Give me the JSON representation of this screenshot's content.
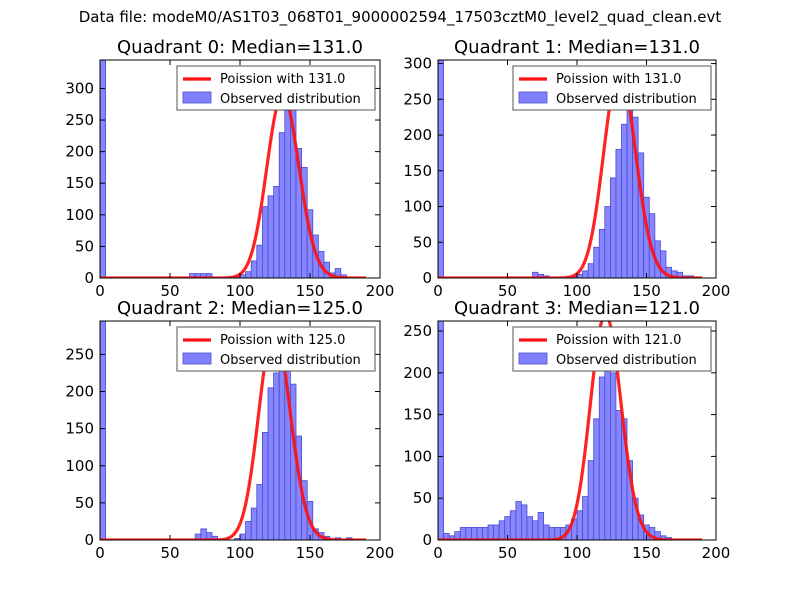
{
  "figure_title": "Data file: modeM0/AS1T03_068T01_9000002594_17503cztM0_level2_quad_clean.evt",
  "colors": {
    "bar_fill": "#8080ff",
    "bar_edge": "#4b4bd0",
    "poisson_line": "#ff1010",
    "axes": "#000000",
    "background": "#ffffff"
  },
  "chart_data": [
    {
      "type": "bar",
      "title": "Quadrant 0: Median=131.0",
      "median": 131.0,
      "legend": {
        "poisson": "Poission with 131.0",
        "observed": "Observed distribution",
        "placement": "top-right"
      },
      "xlim": [
        0,
        200
      ],
      "ylim": [
        0,
        345
      ],
      "xticks": [
        0,
        50,
        100,
        150,
        200
      ],
      "yticks": [
        0,
        50,
        100,
        150,
        200,
        250,
        300
      ],
      "bin_width": 4,
      "bins": [
        [
          0,
          345
        ],
        [
          64,
          7
        ],
        [
          68,
          7
        ],
        [
          72,
          7
        ],
        [
          76,
          7
        ],
        [
          92,
          2
        ],
        [
          96,
          3
        ],
        [
          100,
          5
        ],
        [
          104,
          10
        ],
        [
          108,
          27
        ],
        [
          112,
          52
        ],
        [
          116,
          113
        ],
        [
          120,
          130
        ],
        [
          124,
          145
        ],
        [
          128,
          230
        ],
        [
          132,
          265
        ],
        [
          136,
          300
        ],
        [
          140,
          205
        ],
        [
          144,
          175
        ],
        [
          148,
          108
        ],
        [
          152,
          68
        ],
        [
          156,
          42
        ],
        [
          160,
          25
        ],
        [
          164,
          8
        ],
        [
          168,
          15
        ],
        [
          172,
          5
        ]
      ],
      "poisson_peak": 290
    },
    {
      "type": "bar",
      "title": "Quadrant 1: Median=131.0",
      "median": 131.0,
      "legend": {
        "poisson": "Poission with 131.0",
        "observed": "Observed distribution",
        "placement": "top-right"
      },
      "xlim": [
        0,
        200
      ],
      "ylim": [
        0,
        305
      ],
      "xticks": [
        0,
        50,
        100,
        150,
        200
      ],
      "yticks": [
        0,
        50,
        100,
        150,
        200,
        250,
        300
      ],
      "bin_width": 4,
      "bins": [
        [
          0,
          305
        ],
        [
          68,
          8
        ],
        [
          72,
          5
        ],
        [
          76,
          3
        ],
        [
          96,
          2
        ],
        [
          100,
          5
        ],
        [
          104,
          10
        ],
        [
          108,
          20
        ],
        [
          112,
          43
        ],
        [
          116,
          68
        ],
        [
          120,
          100
        ],
        [
          124,
          140
        ],
        [
          128,
          180
        ],
        [
          132,
          215
        ],
        [
          136,
          280
        ],
        [
          140,
          225
        ],
        [
          144,
          175
        ],
        [
          148,
          113
        ],
        [
          152,
          90
        ],
        [
          156,
          52
        ],
        [
          160,
          38
        ],
        [
          164,
          15
        ],
        [
          168,
          10
        ],
        [
          172,
          8
        ],
        [
          176,
          3
        ],
        [
          180,
          3
        ]
      ],
      "poisson_peak": 290
    },
    {
      "type": "bar",
      "title": "Quadrant 2: Median=125.0",
      "median": 125.0,
      "legend": {
        "poisson": "Poission with 125.0",
        "observed": "Observed distribution",
        "placement": "top-right"
      },
      "xlim": [
        0,
        200
      ],
      "ylim": [
        0,
        295
      ],
      "xticks": [
        0,
        50,
        100,
        150,
        200
      ],
      "yticks": [
        0,
        50,
        100,
        150,
        200,
        250
      ],
      "bin_width": 4,
      "bins": [
        [
          0,
          295
        ],
        [
          68,
          8
        ],
        [
          72,
          15
        ],
        [
          76,
          10
        ],
        [
          80,
          5
        ],
        [
          96,
          2
        ],
        [
          100,
          8
        ],
        [
          104,
          25
        ],
        [
          108,
          43
        ],
        [
          112,
          75
        ],
        [
          116,
          145
        ],
        [
          120,
          205
        ],
        [
          124,
          225
        ],
        [
          128,
          270
        ],
        [
          132,
          255
        ],
        [
          136,
          210
        ],
        [
          140,
          140
        ],
        [
          144,
          80
        ],
        [
          148,
          52
        ],
        [
          152,
          15
        ],
        [
          156,
          10
        ],
        [
          160,
          5
        ],
        [
          168,
          3
        ],
        [
          176,
          3
        ]
      ],
      "poisson_peak": 285
    },
    {
      "type": "bar",
      "title": "Quadrant 3: Median=121.0",
      "median": 121.0,
      "legend": {
        "poisson": "Poission with 121.0",
        "observed": "Observed distribution",
        "placement": "top-right"
      },
      "xlim": [
        0,
        200
      ],
      "ylim": [
        0,
        262
      ],
      "xticks": [
        0,
        50,
        100,
        150,
        200
      ],
      "yticks": [
        0,
        50,
        100,
        150,
        200,
        250
      ],
      "bin_width": 4,
      "bins": [
        [
          0,
          262
        ],
        [
          4,
          8
        ],
        [
          8,
          5
        ],
        [
          12,
          10
        ],
        [
          16,
          15
        ],
        [
          20,
          15
        ],
        [
          24,
          15
        ],
        [
          28,
          15
        ],
        [
          32,
          15
        ],
        [
          36,
          18
        ],
        [
          40,
          18
        ],
        [
          44,
          23
        ],
        [
          48,
          28
        ],
        [
          52,
          35
        ],
        [
          56,
          46
        ],
        [
          60,
          42
        ],
        [
          64,
          28
        ],
        [
          68,
          23
        ],
        [
          72,
          33
        ],
        [
          76,
          18
        ],
        [
          80,
          15
        ],
        [
          84,
          15
        ],
        [
          88,
          15
        ],
        [
          92,
          18
        ],
        [
          96,
          25
        ],
        [
          100,
          35
        ],
        [
          104,
          52
        ],
        [
          108,
          95
        ],
        [
          112,
          145
        ],
        [
          116,
          195
        ],
        [
          120,
          225
        ],
        [
          124,
          200
        ],
        [
          128,
          155
        ],
        [
          132,
          145
        ],
        [
          136,
          95
        ],
        [
          140,
          50
        ],
        [
          144,
          30
        ],
        [
          148,
          18
        ],
        [
          152,
          15
        ],
        [
          156,
          10
        ],
        [
          160,
          5
        ],
        [
          164,
          3
        ]
      ],
      "poisson_peak": 270
    }
  ]
}
